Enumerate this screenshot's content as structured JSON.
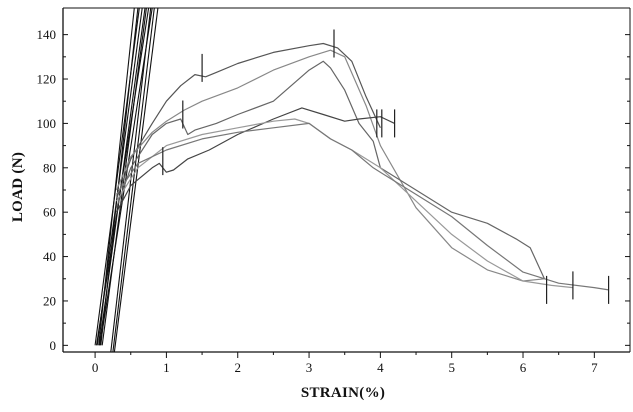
{
  "chart_data": {
    "type": "line",
    "xlabel": "STRAIN(%)",
    "ylabel": "LOAD (N)",
    "xlim": [
      -0.45,
      7.5
    ],
    "ylim": [
      -3,
      152
    ],
    "x_ticks": [
      0,
      1,
      2,
      3,
      4,
      5,
      6,
      7
    ],
    "y_ticks": [
      0,
      20,
      40,
      60,
      80,
      100,
      120,
      140
    ],
    "grid": false,
    "legend": "none",
    "steep_lines": [
      [
        [
          0.0,
          0
        ],
        [
          0.62,
          152
        ]
      ],
      [
        [
          0.02,
          0
        ],
        [
          0.75,
          152
        ]
      ],
      [
        [
          0.03,
          0
        ],
        [
          0.66,
          152
        ]
      ],
      [
        [
          0.05,
          0
        ],
        [
          0.55,
          152
        ]
      ],
      [
        [
          0.06,
          0
        ],
        [
          0.7,
          152
        ]
      ],
      [
        [
          0.07,
          0
        ],
        [
          0.8,
          152
        ]
      ],
      [
        [
          0.08,
          0
        ],
        [
          0.6,
          152
        ]
      ],
      [
        [
          0.1,
          0
        ],
        [
          0.72,
          152
        ]
      ],
      [
        [
          0.22,
          -3
        ],
        [
          0.78,
          152
        ]
      ],
      [
        [
          0.25,
          -3
        ],
        [
          0.83,
          152
        ]
      ],
      [
        [
          0.27,
          -3
        ],
        [
          0.88,
          152
        ]
      ]
    ],
    "series": [
      {
        "color": "#555555",
        "points": [
          [
            0.3,
            66
          ],
          [
            0.5,
            84
          ],
          [
            0.8,
            100
          ],
          [
            1.0,
            110
          ],
          [
            1.2,
            117
          ],
          [
            1.4,
            122
          ],
          [
            1.55,
            121
          ],
          [
            1.7,
            123
          ],
          [
            2.0,
            127
          ],
          [
            2.5,
            132
          ],
          [
            3.0,
            135
          ],
          [
            3.2,
            136
          ],
          [
            3.4,
            134
          ],
          [
            3.6,
            128
          ],
          [
            3.8,
            112
          ],
          [
            4.0,
            98
          ]
        ]
      },
      {
        "color": "#888888",
        "points": [
          [
            0.3,
            70
          ],
          [
            0.5,
            85
          ],
          [
            0.8,
            96
          ],
          [
            1.0,
            101
          ],
          [
            1.25,
            106
          ],
          [
            1.5,
            110
          ],
          [
            2.0,
            116
          ],
          [
            2.5,
            124
          ],
          [
            3.0,
            130
          ],
          [
            3.3,
            133
          ],
          [
            3.5,
            130
          ],
          [
            3.8,
            108
          ],
          [
            4.0,
            90
          ],
          [
            4.5,
            62
          ],
          [
            5.0,
            44
          ],
          [
            5.5,
            34
          ],
          [
            6.0,
            29
          ],
          [
            6.3,
            30
          ]
        ]
      },
      {
        "color": "#666666",
        "points": [
          [
            0.3,
            62
          ],
          [
            0.5,
            80
          ],
          [
            0.8,
            95
          ],
          [
            1.0,
            100
          ],
          [
            1.2,
            102
          ],
          [
            1.3,
            95
          ],
          [
            1.4,
            97
          ],
          [
            1.7,
            100
          ],
          [
            2.0,
            104
          ],
          [
            2.5,
            110
          ],
          [
            3.0,
            124
          ],
          [
            3.2,
            128
          ],
          [
            3.3,
            125
          ],
          [
            3.5,
            115
          ],
          [
            3.7,
            100
          ],
          [
            3.9,
            92
          ],
          [
            4.0,
            80
          ],
          [
            4.5,
            70
          ],
          [
            5.0,
            60
          ],
          [
            5.5,
            55
          ],
          [
            5.9,
            48
          ],
          [
            6.1,
            44
          ],
          [
            6.3,
            30
          ]
        ]
      },
      {
        "color": "#444444",
        "points": [
          [
            0.3,
            60
          ],
          [
            0.5,
            72
          ],
          [
            0.8,
            80
          ],
          [
            0.9,
            82
          ],
          [
            1.0,
            78
          ],
          [
            1.1,
            79
          ],
          [
            1.3,
            84
          ],
          [
            1.6,
            88
          ],
          [
            2.0,
            95
          ],
          [
            2.5,
            102
          ],
          [
            2.9,
            107
          ],
          [
            3.2,
            104
          ],
          [
            3.5,
            101
          ],
          [
            3.7,
            102
          ],
          [
            4.0,
            103
          ],
          [
            4.2,
            100
          ]
        ]
      },
      {
        "color": "#999999",
        "points": [
          [
            0.3,
            65
          ],
          [
            0.6,
            80
          ],
          [
            1.0,
            90
          ],
          [
            1.5,
            95
          ],
          [
            2.0,
            98
          ],
          [
            2.5,
            101
          ],
          [
            2.8,
            102
          ],
          [
            3.0,
            100
          ],
          [
            3.3,
            93
          ],
          [
            3.6,
            88
          ],
          [
            4.0,
            80
          ],
          [
            4.5,
            65
          ],
          [
            5.0,
            50
          ],
          [
            5.5,
            38
          ],
          [
            6.0,
            29
          ],
          [
            6.4,
            27
          ],
          [
            6.7,
            26
          ]
        ]
      },
      {
        "color": "#777777",
        "points": [
          [
            0.3,
            68
          ],
          [
            0.6,
            82
          ],
          [
            1.0,
            88
          ],
          [
            1.5,
            93
          ],
          [
            2.0,
            96
          ],
          [
            2.5,
            98
          ],
          [
            3.0,
            100
          ],
          [
            3.3,
            93
          ],
          [
            3.6,
            88
          ],
          [
            3.9,
            80
          ],
          [
            4.2,
            74
          ],
          [
            4.5,
            68
          ],
          [
            5.0,
            58
          ],
          [
            5.5,
            45
          ],
          [
            6.0,
            33
          ],
          [
            6.5,
            28
          ],
          [
            7.0,
            26
          ],
          [
            7.2,
            25
          ]
        ]
      }
    ],
    "failure_markers": [
      {
        "x": 0.95,
        "y": 83
      },
      {
        "x": 1.23,
        "y": 104
      },
      {
        "x": 1.5,
        "y": 125
      },
      {
        "x": 3.35,
        "y": 136
      },
      {
        "x": 3.95,
        "y": 100
      },
      {
        "x": 4.02,
        "y": 100
      },
      {
        "x": 4.2,
        "y": 100
      },
      {
        "x": 6.33,
        "y": 25
      },
      {
        "x": 6.7,
        "y": 27
      },
      {
        "x": 7.2,
        "y": 25
      }
    ]
  }
}
